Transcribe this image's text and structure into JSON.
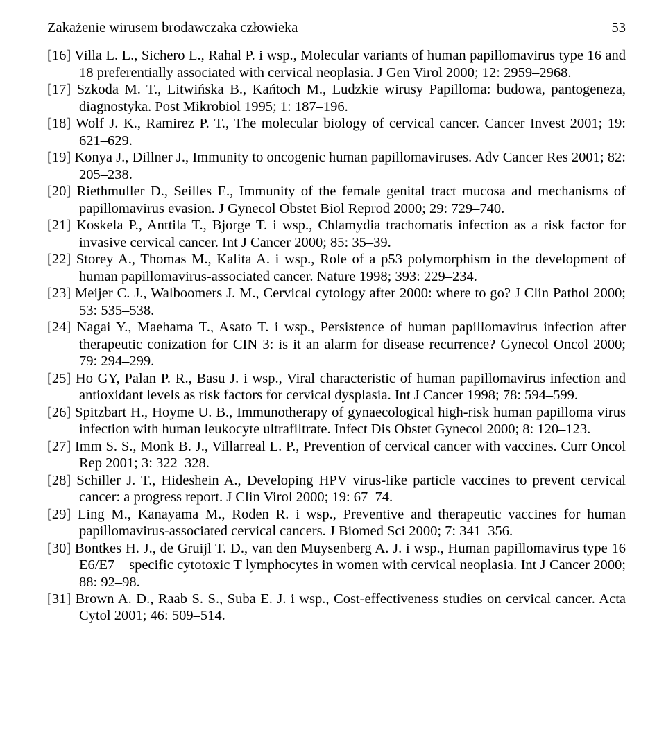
{
  "header": {
    "running_title": "Zakażenie wirusem brodawczaka człowieka",
    "page_number": "53"
  },
  "references": [
    "[16] Villa L. L., Sichero L., Rahal P. i wsp., Molecular variants of human papillomavirus type 16 and 18 preferentially associated with cervical neoplasia. J Gen Virol 2000; 12: 2959–2968.",
    "[17] Szkoda M. T., Litwińska B., Kańtoch M., Ludzkie wirusy Papilloma: budowa, pantogeneza, diagnostyka. Post Mikrobiol 1995; 1: 187–196.",
    "[18] Wolf J. K., Ramirez P. T., The molecular biology of cervical cancer. Cancer Invest 2001; 19: 621–629.",
    "[19] Konya J., Dillner J., Immunity to oncogenic human papillomaviruses. Adv Cancer Res 2001; 82: 205–238.",
    "[20] Riethmuller D., Seilles E., Immunity of the female genital tract mucosa and mechanisms of papillomavirus evasion. J Gynecol Obstet Biol Reprod 2000; 29: 729–740.",
    "[21] Koskela P., Anttila T., Bjorge T. i wsp., Chlamydia trachomatis infection as a risk factor for invasive cervical cancer. Int J Cancer 2000; 85: 35–39.",
    "[22] Storey A., Thomas M., Kalita A. i wsp., Role of a p53 polymorphism in the development of human papillomavirus-associated cancer. Nature 1998; 393: 229–234.",
    "[23] Meijer C. J., Walboomers J. M., Cervical cytology after 2000: where to go? J Clin Pathol 2000; 53: 535–538.",
    "[24] Nagai Y., Maehama T., Asato T. i wsp., Persistence of human papillomavirus infection after therapeutic conization for CIN 3: is it an alarm for disease recurrence? Gynecol Oncol 2000; 79: 294–299.",
    "[25] Ho GY, Palan P. R., Basu J. i wsp., Viral characteristic of human papillomavirus infection and antioxidant levels as risk factors for cervical dysplasia. Int J Cancer 1998; 78: 594–599.",
    "[26] Spitzbart H., Hoyme U. B., Immunotherapy of gynaecological high-risk human papilloma virus infection with human leukocyte ultrafiltrate. Infect Dis Obstet Gynecol 2000; 8: 120–123.",
    "[27] Imm S. S., Monk B. J., Villarreal L. P., Prevention of cervical cancer with vaccines. Curr Oncol Rep 2001; 3: 322–328.",
    "[28] Schiller J. T., Hideshein A., Developing HPV virus-like particle vaccines to prevent cervical cancer: a progress report. J Clin Virol 2000; 19: 67–74.",
    "[29] Ling M., Kanayama M., Roden R. i wsp., Preventive and therapeutic vaccines for human papillomavirus-associated cervical cancers. J Biomed Sci 2000; 7: 341–356.",
    "[30] Bontkes H. J., de Gruijl T. D., van den Muysenberg A. J. i wsp., Human papillomavirus type 16 E6/E7 – specific cytotoxic T lymphocytes in women with cervical neoplasia. Int J Cancer 2000; 88: 92–98.",
    "[31] Brown A. D., Raab S. S., Suba E. J. i wsp., Cost-effectiveness studies on cervical cancer. Acta Cytol 2001; 46: 509–514."
  ]
}
